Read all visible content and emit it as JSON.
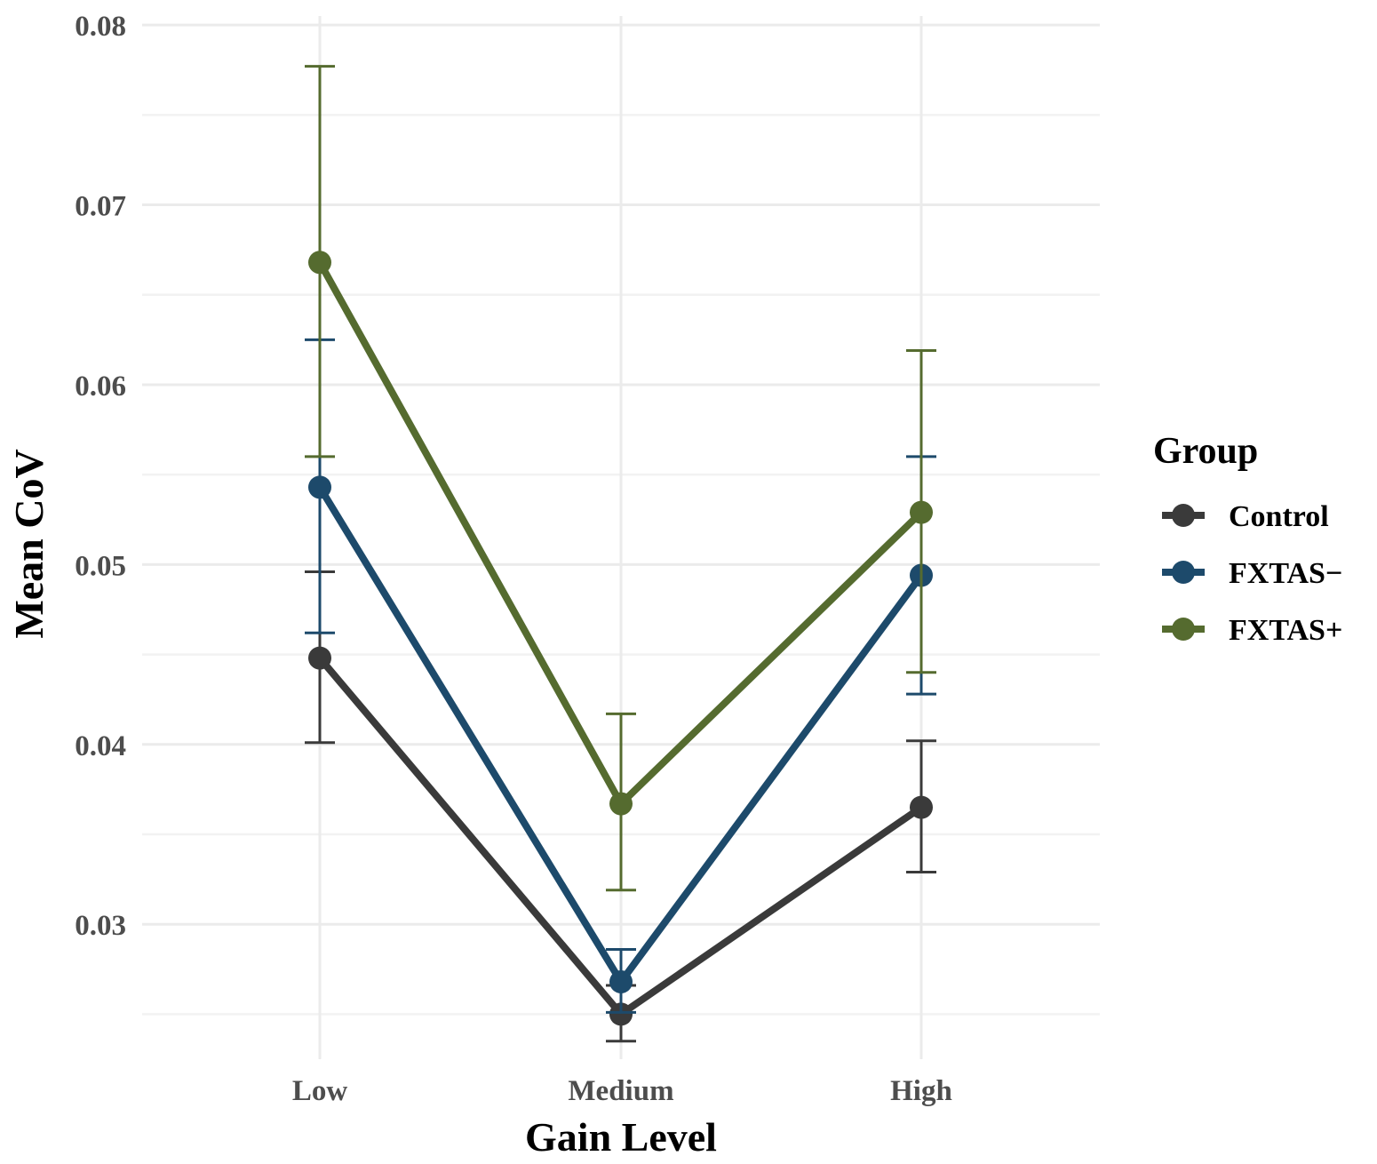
{
  "chart_data": {
    "type": "line",
    "title": "",
    "xlabel": "Gain Level",
    "ylabel": "Mean CoV",
    "categories": [
      "Low",
      "Medium",
      "High"
    ],
    "ylim": [
      0.0225,
      0.0805
    ],
    "yticks": [
      0.03,
      0.04,
      0.05,
      0.06,
      0.07,
      0.08
    ],
    "yticks_labels": [
      "0.03",
      "0.04",
      "0.05",
      "0.06",
      "0.07",
      "0.08"
    ],
    "grid": true,
    "legend": {
      "title": "Group",
      "position": "right"
    },
    "series": [
      {
        "name": "Control",
        "color": "#3a3a3a",
        "values": [
          0.0448,
          0.025,
          0.0365
        ],
        "error_low": [
          0.0401,
          0.0235,
          0.0329
        ],
        "error_high": [
          0.0496,
          0.0266,
          0.0402
        ]
      },
      {
        "name": "FXTAS−",
        "color": "#1d4a6b",
        "values": [
          0.0543,
          0.0268,
          0.0494
        ],
        "error_low": [
          0.0462,
          0.0251,
          0.0428
        ],
        "error_high": [
          0.0625,
          0.0286,
          0.056
        ]
      },
      {
        "name": "FXTAS+",
        "color": "#556b2f",
        "values": [
          0.0668,
          0.0367,
          0.0529
        ],
        "error_low": [
          0.056,
          0.0319,
          0.044
        ],
        "error_high": [
          0.0777,
          0.0417,
          0.0619
        ]
      }
    ]
  }
}
